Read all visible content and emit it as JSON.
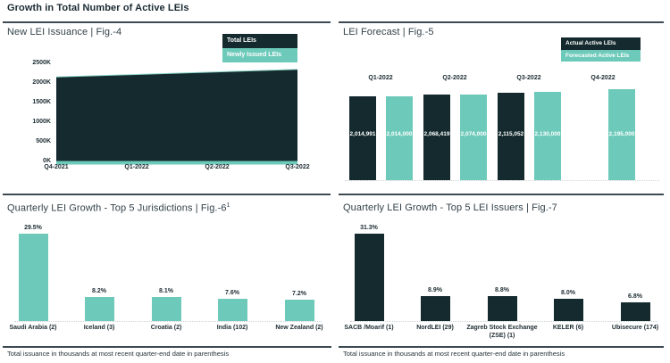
{
  "page": {
    "title": "Growth in Total Number of Active LEIs"
  },
  "colors": {
    "dark": "#142a2e",
    "teal": "#6dcaba",
    "teal_edge": "#8fd8c9",
    "text_dark": "#1c2b31",
    "divider": "#3e4a51",
    "baseline": "#cfd4d6",
    "white": "#ffffff"
  },
  "chart_data": [
    {
      "id": "issuance",
      "type": "area",
      "title": "New LEI Issuance | Fig.-4",
      "legend": [
        {
          "label": "Total LEIs",
          "swatch": "dark"
        },
        {
          "label": "Newly Issued LEIs",
          "swatch": "teal"
        }
      ],
      "x": [
        "Q4-2021",
        "Q1-2022",
        "Q2-2022",
        "Q3-2022"
      ],
      "yticks": [
        "0K",
        "500K",
        "1000K",
        "1500K",
        "2000K",
        "2500K"
      ],
      "ylim": [
        0,
        2500000
      ],
      "grid": false,
      "legend_position": "top-right",
      "series": [
        {
          "name": "Total LEIs",
          "color": "dark",
          "values": [
            2140000,
            2205000,
            2270000,
            2335000
          ]
        },
        {
          "name": "Newly Issued LEIs",
          "color": "teal",
          "values": [
            90000,
            90000,
            90000,
            90000
          ]
        }
      ]
    },
    {
      "id": "forecast",
      "type": "bar",
      "title": "LEI Forecast | Fig.-5",
      "legend": [
        {
          "label": "Actual Active LEIs",
          "swatch": "dark"
        },
        {
          "label": "Forecasted Active LEIs",
          "swatch": "teal"
        }
      ],
      "categories": [
        "Q1-2022",
        "Q2-2022",
        "Q3-2022",
        "Q4-2022"
      ],
      "ylim": [
        0,
        2195000
      ],
      "grid": false,
      "legend_position": "top-right",
      "series": [
        {
          "name": "Actual Active LEIs",
          "color": "dark",
          "values": [
            2014991,
            2068419,
            2115052,
            null
          ],
          "labels": [
            "2,014,991",
            "2,068,419",
            "2,115,052",
            ""
          ]
        },
        {
          "name": "Forecasted Active LEIs",
          "color": "teal",
          "values": [
            2014000,
            2074000,
            2130000,
            2195000
          ],
          "labels": [
            "2,014,000",
            "2,074,000",
            "2,130,000",
            "2,195,000"
          ]
        }
      ]
    },
    {
      "id": "jurisdictions",
      "type": "bar",
      "title": "Quarterly LEI Growth - Top 5 Jurisdictions | Fig.-6",
      "title_sup": "1",
      "bar_color": "teal",
      "categories": [
        "Saudi Arabia (2)",
        "Iceland (3)",
        "Croatia (2)",
        "India (102)",
        "New Zealand (2)"
      ],
      "values": [
        29.5,
        8.2,
        8.1,
        7.6,
        7.2
      ],
      "labels": [
        "29.5%",
        "8.2%",
        "8.1%",
        "7.6%",
        "7.2%"
      ],
      "ylim": [
        0,
        29.5
      ],
      "grid": false,
      "footnote": "Total issuance in thousands at most recent quarter-end date in parenthesis"
    },
    {
      "id": "issuers",
      "type": "bar",
      "title": "Quarterly LEI Growth - Top 5 LEI Issuers | Fig.-7",
      "bar_color": "dark",
      "categories": [
        "SACB /Moarif (1)",
        "NordLEI (29)",
        "Zagreb Stock Exchange (ZSE) (1)",
        "KELER (6)",
        "Ubisecure (174)"
      ],
      "values": [
        31.3,
        8.9,
        8.8,
        8.0,
        6.8
      ],
      "labels": [
        "31.3%",
        "8.9%",
        "8.8%",
        "8.0%",
        "6.8%"
      ],
      "ylim": [
        0,
        31.3
      ],
      "grid": false,
      "footnote": "Total issuance in thousands at most recent quarter-end date in parenthesis"
    }
  ]
}
